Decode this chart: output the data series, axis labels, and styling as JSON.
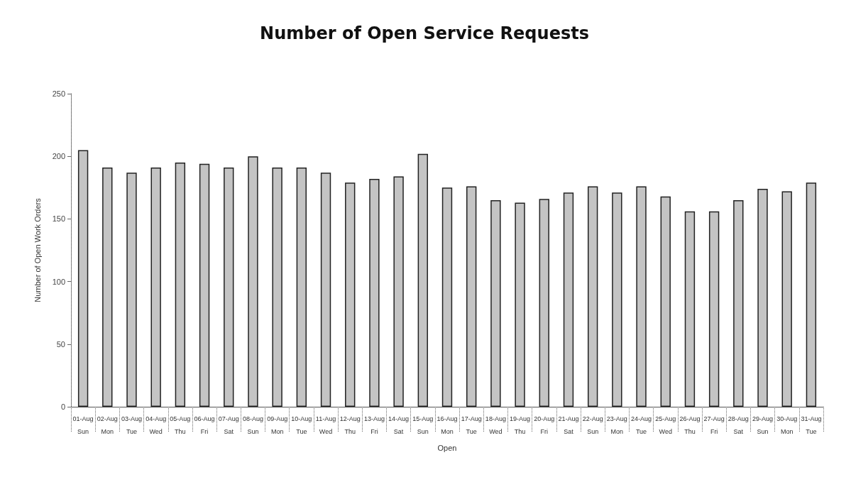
{
  "chart_data": {
    "type": "bar",
    "title": "Number of Open Service Requests",
    "xlabel": "Open",
    "ylabel": "Number of Open Work Orders",
    "categories": [
      "01-Aug\nSun",
      "02-Aug\nMon",
      "03-Aug\nTue",
      "04-Aug\nWed",
      "05-Aug\nThu",
      "06-Aug\nFri",
      "07-Aug\nSat",
      "08-Aug\nSun",
      "09-Aug\nMon",
      "10-Aug\nTue",
      "11-Aug\nWed",
      "12-Aug\nThu",
      "13-Aug\nFri",
      "14-Aug\nSat",
      "15-Aug\nSun",
      "16-Aug\nMon",
      "17-Aug\nTue",
      "18-Aug\nWed",
      "19-Aug\nThu",
      "20-Aug\nFri",
      "21-Aug\nSat",
      "22-Aug\nSun",
      "23-Aug\nMon",
      "24-Aug\nTue",
      "25-Aug\nWed",
      "26-Aug\nThu",
      "27-Aug\nFri",
      "28-Aug\nSat",
      "29-Aug\nSun",
      "30-Aug\nMon",
      "31-Aug\nTue"
    ],
    "values": [
      205,
      191,
      187,
      191,
      195,
      194,
      191,
      200,
      191,
      191,
      187,
      179,
      182,
      184,
      202,
      175,
      176,
      165,
      163,
      166,
      171,
      176,
      171,
      176,
      168,
      156,
      156,
      165,
      174,
      172,
      179
    ],
    "color": "#c4c4c4",
    "ylim": [
      0,
      250
    ],
    "yticks": [
      0,
      50,
      100,
      150,
      200,
      250
    ],
    "grid": false
  }
}
